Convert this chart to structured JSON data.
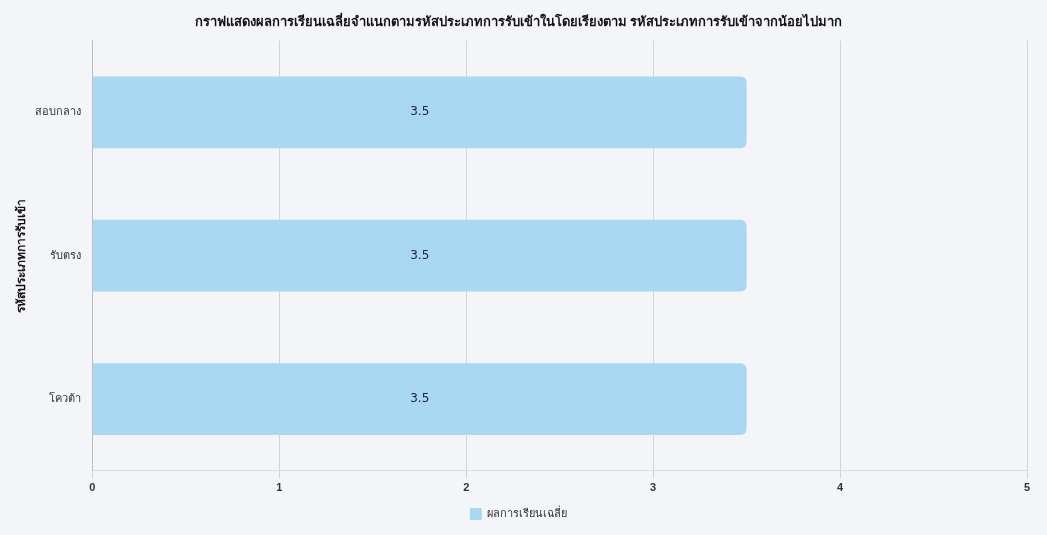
{
  "chart_data": {
    "type": "bar",
    "orientation": "horizontal",
    "title": "กราฟแสดงผลการเรียนเฉลี่ยจำแนกตามรหัสประเภทการรับเข้าในโดยเรียงตาม รหัสประเภทการรับเข้าจากน้อยไปมาก",
    "ylabel": "รหัสประเภทการรับเข้า",
    "categories": [
      "สอบกลาง",
      "รับตรง",
      "โควต้า"
    ],
    "series": [
      {
        "name": "ผลการเรียนเฉลี่ย",
        "color": "#a9d9f2",
        "values": [
          3.5,
          3.5,
          3.5
        ]
      }
    ],
    "xlim": [
      0,
      5
    ],
    "xticks": [
      0,
      1,
      2,
      3,
      4,
      5
    ],
    "grid": "x",
    "legend": "bottom",
    "data_labels": true
  }
}
